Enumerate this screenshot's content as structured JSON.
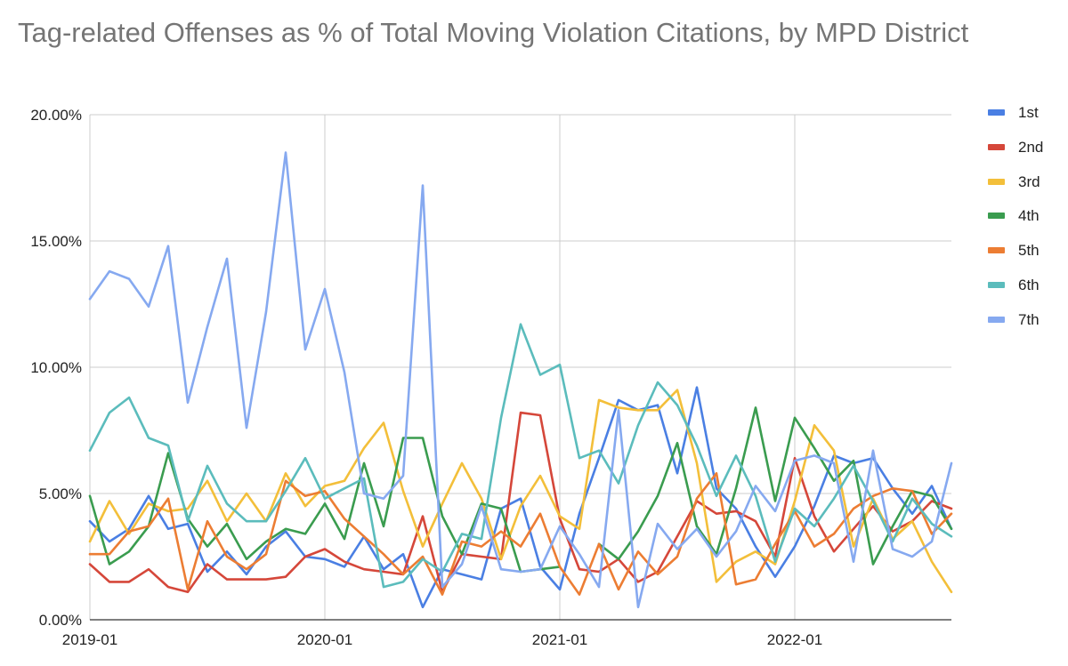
{
  "chart_data": {
    "type": "line",
    "title": "Tag-related Offenses as % of Total Moving Violation Citations, by MPD District",
    "xlabel": "",
    "ylabel": "",
    "x_start": "2019-01",
    "x_end": "2022-09",
    "x_ticks": [
      "2019-01",
      "2020-01",
      "2021-01",
      "2022-01"
    ],
    "y_ticks": [
      "0.00%",
      "5.00%",
      "10.00%",
      "15.00%",
      "20.00%"
    ],
    "ylim": [
      0,
      20
    ],
    "grid": true,
    "legend_position": "right",
    "x": [
      "2019-01",
      "2019-02",
      "2019-03",
      "2019-04",
      "2019-05",
      "2019-06",
      "2019-07",
      "2019-08",
      "2019-09",
      "2019-10",
      "2019-11",
      "2019-12",
      "2020-01",
      "2020-02",
      "2020-03",
      "2020-04",
      "2020-05",
      "2020-06",
      "2020-07",
      "2020-08",
      "2020-09",
      "2020-10",
      "2020-11",
      "2020-12",
      "2021-01",
      "2021-02",
      "2021-03",
      "2021-04",
      "2021-05",
      "2021-06",
      "2021-07",
      "2021-08",
      "2021-09",
      "2021-10",
      "2021-11",
      "2021-12",
      "2022-01",
      "2022-02",
      "2022-03",
      "2022-04",
      "2022-05",
      "2022-06",
      "2022-07",
      "2022-08",
      "2022-09"
    ],
    "series": [
      {
        "name": "1st",
        "color": "#4a7fe3",
        "values": [
          3.9,
          3.1,
          3.6,
          4.9,
          3.6,
          3.8,
          1.9,
          2.7,
          1.8,
          2.9,
          3.5,
          2.5,
          2.4,
          2.1,
          3.3,
          2.0,
          2.6,
          0.5,
          2.0,
          1.8,
          1.6,
          4.4,
          4.8,
          2.1,
          1.2,
          4.2,
          6.4,
          8.7,
          8.3,
          8.5,
          5.8,
          9.2,
          5.2,
          4.4,
          2.9,
          1.7,
          2.9,
          4.5,
          6.5,
          6.2,
          6.4,
          5.2,
          4.2,
          5.3,
          3.6
        ]
      },
      {
        "name": "2nd",
        "color": "#d5473a",
        "values": [
          2.2,
          1.5,
          1.5,
          2.0,
          1.3,
          1.1,
          2.2,
          1.6,
          1.6,
          1.6,
          1.7,
          2.5,
          2.8,
          2.3,
          2.0,
          1.9,
          1.8,
          4.1,
          1.1,
          2.6,
          2.5,
          2.4,
          8.2,
          8.1,
          4.0,
          2.0,
          1.9,
          2.4,
          1.5,
          1.9,
          3.3,
          4.7,
          4.2,
          4.3,
          3.9,
          2.5,
          6.4,
          4.1,
          2.7,
          3.6,
          4.5,
          3.5,
          3.9,
          4.7,
          4.4
        ]
      },
      {
        "name": "3rd",
        "color": "#f3bf3a",
        "values": [
          3.1,
          4.7,
          3.4,
          4.6,
          4.3,
          4.4,
          5.5,
          3.9,
          5.0,
          3.9,
          5.8,
          4.5,
          5.3,
          5.5,
          6.8,
          7.8,
          5.1,
          2.9,
          4.6,
          6.2,
          4.8,
          2.4,
          4.5,
          5.7,
          4.1,
          3.6,
          8.7,
          8.4,
          8.3,
          8.3,
          9.1,
          6.2,
          1.5,
          2.3,
          2.7,
          2.2,
          4.7,
          7.7,
          6.7,
          2.9,
          4.8,
          3.2,
          3.9,
          2.3,
          1.1
        ]
      },
      {
        "name": "4th",
        "color": "#3a9c4f",
        "values": [
          4.9,
          2.2,
          2.7,
          3.7,
          6.6,
          4.0,
          2.9,
          3.8,
          2.4,
          3.1,
          3.6,
          3.4,
          4.6,
          3.2,
          6.2,
          3.7,
          7.2,
          7.2,
          4.1,
          2.6,
          4.6,
          4.4,
          1.9,
          2.0,
          2.1,
          null,
          3.0,
          2.4,
          3.5,
          4.9,
          7.0,
          3.7,
          2.6,
          5.2,
          8.4,
          4.7,
          8.0,
          6.8,
          5.5,
          6.3,
          2.2,
          3.7,
          5.1,
          4.9,
          3.6
        ]
      },
      {
        "name": "5th",
        "color": "#ec7d33",
        "values": [
          2.6,
          2.6,
          3.5,
          3.7,
          4.8,
          1.2,
          3.9,
          2.5,
          2.0,
          2.6,
          5.5,
          4.9,
          5.1,
          4.0,
          3.3,
          2.6,
          1.8,
          2.5,
          1.0,
          3.1,
          2.9,
          3.5,
          2.9,
          4.2,
          2.1,
          1.0,
          3.0,
          1.2,
          2.7,
          1.8,
          2.5,
          4.8,
          5.8,
          1.4,
          1.6,
          3.0,
          4.3,
          2.9,
          3.4,
          4.4,
          4.9,
          5.2,
          5.1,
          3.4,
          4.2
        ]
      },
      {
        "name": "6th",
        "color": "#5bbcbc",
        "values": [
          6.7,
          8.2,
          8.8,
          7.2,
          6.9,
          3.9,
          6.1,
          4.6,
          3.9,
          3.9,
          5.1,
          6.4,
          4.8,
          5.2,
          5.6,
          1.3,
          1.5,
          2.4,
          1.9,
          3.4,
          3.2,
          8.0,
          11.7,
          9.7,
          10.1,
          6.4,
          6.7,
          5.4,
          7.7,
          9.4,
          8.5,
          6.9,
          4.9,
          6.5,
          4.9,
          2.3,
          4.4,
          3.7,
          4.8,
          6.1,
          4.7,
          3.1,
          4.8,
          3.8,
          3.3
        ]
      },
      {
        "name": "7th",
        "color": "#86a9f0",
        "values": [
          12.7,
          13.8,
          13.5,
          12.4,
          14.8,
          8.6,
          11.6,
          14.3,
          7.6,
          12.2,
          18.5,
          10.7,
          13.1,
          9.8,
          5.0,
          4.8,
          5.7,
          17.2,
          1.3,
          2.2,
          4.5,
          2.0,
          1.9,
          2.0,
          3.7,
          2.6,
          1.3,
          8.3,
          0.5,
          3.8,
          2.8,
          3.6,
          2.5,
          3.5,
          5.3,
          4.3,
          6.3,
          6.5,
          6.2,
          2.3,
          6.7,
          2.8,
          2.5,
          3.1,
          6.2
        ]
      }
    ]
  }
}
